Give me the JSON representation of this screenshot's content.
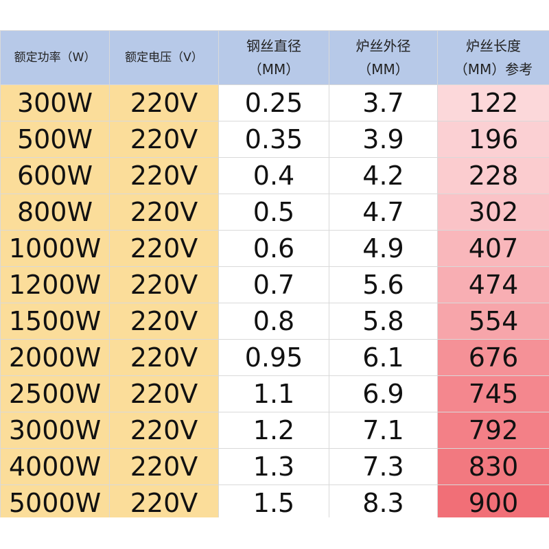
{
  "table": {
    "headers": [
      {
        "lines": [
          "额定功率（W）"
        ],
        "small": true
      },
      {
        "lines": [
          "额定电压（V）"
        ],
        "small": true
      },
      {
        "lines": [
          "钢丝直径",
          "（MM）"
        ],
        "small": false
      },
      {
        "lines": [
          "炉丝外径",
          "（MM）"
        ],
        "small": false
      },
      {
        "lines": [
          "炉丝长度",
          "（MM）参考"
        ],
        "small": false
      }
    ],
    "rows": [
      {
        "power": "300W",
        "voltage": "220V",
        "wire": "0.25",
        "outer": "3.7",
        "length": "122",
        "length_shade": 0.1
      },
      {
        "power": "500W",
        "voltage": "220V",
        "wire": "0.35",
        "outer": "3.9",
        "length": "196",
        "length_shade": 0.16
      },
      {
        "power": "600W",
        "voltage": "220V",
        "wire": "0.4",
        "outer": "4.2",
        "length": "228",
        "length_shade": 0.2
      },
      {
        "power": "800W",
        "voltage": "220V",
        "wire": "0.5",
        "outer": "4.7",
        "length": "302",
        "length_shade": 0.27
      },
      {
        "power": "1000W",
        "voltage": "220V",
        "wire": "0.6",
        "outer": "4.9",
        "length": "407",
        "length_shade": 0.37
      },
      {
        "power": "1200W",
        "voltage": "220V",
        "wire": "0.7",
        "outer": "5.6",
        "length": "474",
        "length_shade": 0.44
      },
      {
        "power": "1500W",
        "voltage": "220V",
        "wire": "0.8",
        "outer": "5.8",
        "length": "554",
        "length_shade": 0.52
      },
      {
        "power": "2000W",
        "voltage": "220V",
        "wire": "0.95",
        "outer": "6.1",
        "length": "676",
        "length_shade": 0.68
      },
      {
        "power": "2500W",
        "voltage": "220V",
        "wire": "1.1",
        "outer": "6.9",
        "length": "745",
        "length_shade": 0.76
      },
      {
        "power": "3000W",
        "voltage": "220V",
        "wire": "1.2",
        "outer": "7.1",
        "length": "792",
        "length_shade": 0.82
      },
      {
        "power": "4000W",
        "voltage": "220V",
        "wire": "1.3",
        "outer": "7.3",
        "length": "830",
        "length_shade": 0.88
      },
      {
        "power": "5000W",
        "voltage": "220V",
        "wire": "1.5",
        "outer": "8.3",
        "length": "900",
        "length_shade": 0.96
      }
    ]
  },
  "colors": {
    "header_bg": "#b7c9e8",
    "left_cols_bg": "#fbdd9a",
    "length_light": "#fde4e6",
    "length_dark": "#f16a72"
  }
}
